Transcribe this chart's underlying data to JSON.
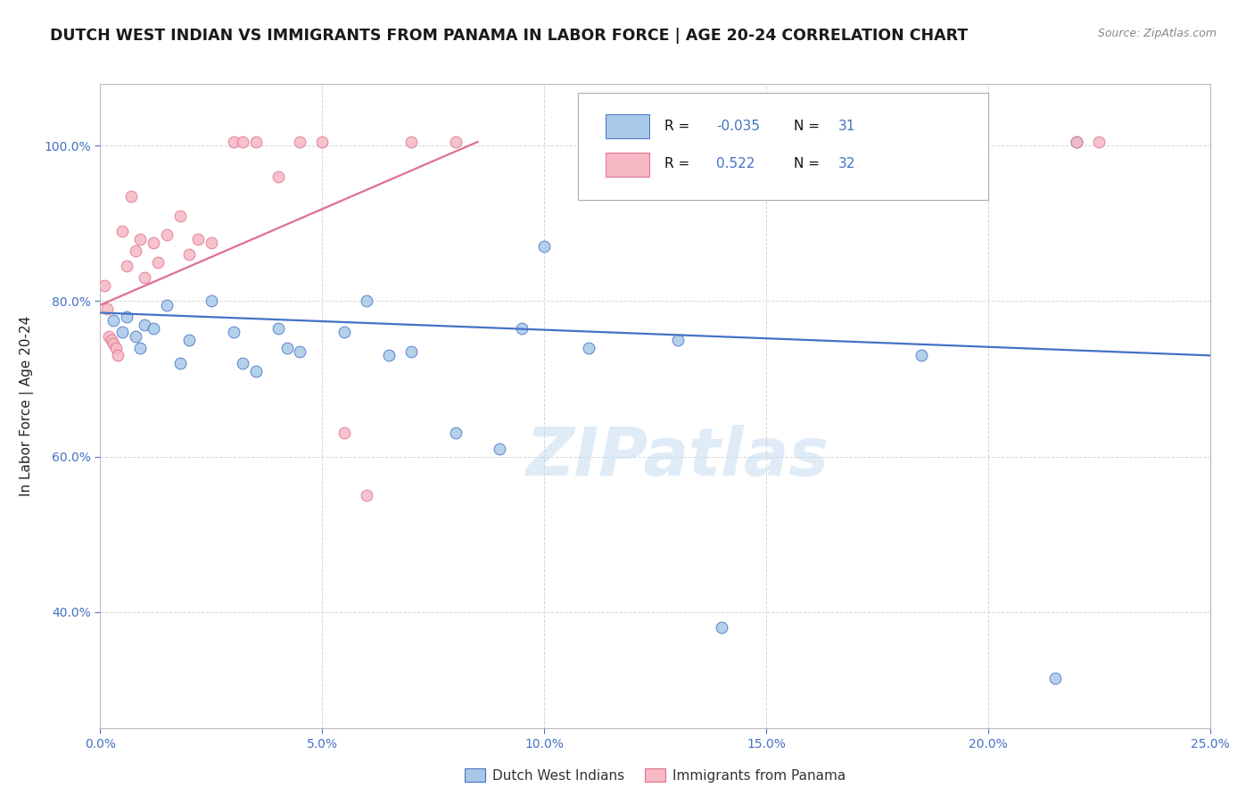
{
  "title": "DUTCH WEST INDIAN VS IMMIGRANTS FROM PANAMA IN LABOR FORCE | AGE 20-24 CORRELATION CHART",
  "source": "Source: ZipAtlas.com",
  "xlabel_vals": [
    0.0,
    5.0,
    10.0,
    15.0,
    20.0,
    25.0
  ],
  "ylabel_vals": [
    40.0,
    60.0,
    80.0,
    100.0
  ],
  "ylabel_label": "In Labor Force | Age 20-24",
  "r_blue": "-0.035",
  "n_blue": "31",
  "r_pink": "0.522",
  "n_pink": "32",
  "blue_scatter": [
    [
      0.3,
      77.5
    ],
    [
      0.5,
      76.0
    ],
    [
      0.6,
      78.0
    ],
    [
      0.8,
      75.5
    ],
    [
      0.9,
      74.0
    ],
    [
      1.0,
      77.0
    ],
    [
      1.2,
      76.5
    ],
    [
      1.5,
      79.5
    ],
    [
      1.8,
      72.0
    ],
    [
      2.0,
      75.0
    ],
    [
      2.5,
      80.0
    ],
    [
      3.0,
      76.0
    ],
    [
      3.2,
      72.0
    ],
    [
      3.5,
      71.0
    ],
    [
      4.0,
      76.5
    ],
    [
      4.2,
      74.0
    ],
    [
      4.5,
      73.5
    ],
    [
      5.5,
      76.0
    ],
    [
      6.0,
      80.0
    ],
    [
      6.5,
      73.0
    ],
    [
      7.0,
      73.5
    ],
    [
      8.0,
      63.0
    ],
    [
      9.0,
      61.0
    ],
    [
      9.5,
      76.5
    ],
    [
      10.0,
      87.0
    ],
    [
      11.0,
      74.0
    ],
    [
      13.0,
      75.0
    ],
    [
      14.0,
      38.0
    ],
    [
      18.5,
      73.0
    ],
    [
      21.5,
      31.5
    ],
    [
      22.0,
      100.5
    ]
  ],
  "pink_scatter": [
    [
      0.1,
      82.0
    ],
    [
      0.15,
      79.0
    ],
    [
      0.2,
      75.5
    ],
    [
      0.25,
      75.0
    ],
    [
      0.3,
      74.5
    ],
    [
      0.35,
      74.0
    ],
    [
      0.4,
      73.0
    ],
    [
      0.5,
      89.0
    ],
    [
      0.6,
      84.5
    ],
    [
      0.7,
      93.5
    ],
    [
      0.8,
      86.5
    ],
    [
      0.9,
      88.0
    ],
    [
      1.0,
      83.0
    ],
    [
      1.2,
      87.5
    ],
    [
      1.3,
      85.0
    ],
    [
      1.5,
      88.5
    ],
    [
      1.8,
      91.0
    ],
    [
      2.0,
      86.0
    ],
    [
      2.2,
      88.0
    ],
    [
      2.5,
      87.5
    ],
    [
      3.0,
      100.5
    ],
    [
      3.2,
      100.5
    ],
    [
      3.5,
      100.5
    ],
    [
      4.0,
      96.0
    ],
    [
      4.5,
      100.5
    ],
    [
      5.0,
      100.5
    ],
    [
      5.5,
      63.0
    ],
    [
      6.0,
      55.0
    ],
    [
      7.0,
      100.5
    ],
    [
      8.0,
      100.5
    ],
    [
      22.0,
      100.5
    ],
    [
      22.5,
      100.5
    ]
  ],
  "blue_line": {
    "x0": 0.0,
    "y0": 78.5,
    "x1": 25.0,
    "y1": 73.0
  },
  "pink_line": {
    "x0": 0.0,
    "y0": 79.5,
    "x1": 8.5,
    "y1": 100.5
  },
  "blue_color": "#a8c8e8",
  "pink_color": "#f5b8c4",
  "blue_line_color": "#4472c4",
  "pink_line_color": "#e07090",
  "watermark": "ZIPatlas",
  "xlim": [
    0.0,
    25.0
  ],
  "ylim": [
    25.0,
    108.0
  ],
  "background": "#ffffff",
  "grid_color": "#cccccc",
  "marker_size": 85,
  "title_fontsize": 12.5,
  "axis_label_fontsize": 11,
  "tick_fontsize": 10,
  "legend_label_blue": "Dutch West Indians",
  "legend_label_pink": "Immigrants from Panama",
  "number_color": "#4472c4",
  "text_color": "#222222"
}
